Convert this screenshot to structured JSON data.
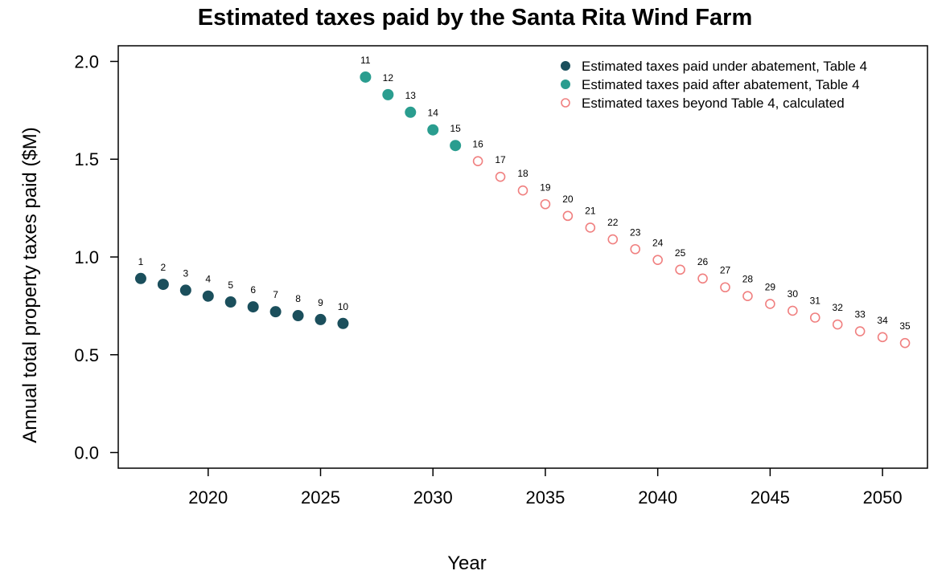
{
  "chart_data": {
    "type": "scatter",
    "title": "Estimated taxes paid by the Santa Rita Wind Farm",
    "xlabel": "Year",
    "ylabel": "Annual total property taxes paid ($M)",
    "xlim": [
      2016,
      2052
    ],
    "ylim": [
      -0.08,
      2.08
    ],
    "xticks": [
      2020,
      2025,
      2030,
      2035,
      2040,
      2045,
      2050
    ],
    "yticks": [
      0.0,
      0.5,
      1.0,
      1.5,
      2.0
    ],
    "ytick_labels": [
      "0.0",
      "0.5",
      "1.0",
      "1.5",
      "2.0"
    ],
    "grid": false,
    "legend_position": "top-right",
    "series": [
      {
        "name": "Estimated taxes paid under abatement, Table 4",
        "marker": "filled-circle",
        "color": "#1b4f5c",
        "x": [
          2017,
          2018,
          2019,
          2020,
          2021,
          2022,
          2023,
          2024,
          2025,
          2026
        ],
        "y": [
          0.89,
          0.86,
          0.83,
          0.8,
          0.77,
          0.745,
          0.72,
          0.7,
          0.68,
          0.66
        ],
        "labels": [
          "1",
          "2",
          "3",
          "4",
          "5",
          "6",
          "7",
          "8",
          "9",
          "10"
        ]
      },
      {
        "name": "Estimated taxes paid after abatement, Table 4",
        "marker": "filled-circle",
        "color": "#2a9d8f",
        "x": [
          2027,
          2028,
          2029,
          2030,
          2031
        ],
        "y": [
          1.92,
          1.83,
          1.74,
          1.65,
          1.57
        ],
        "labels": [
          "11",
          "12",
          "13",
          "14",
          "15"
        ]
      },
      {
        "name": "Estimated taxes beyond Table 4, calculated",
        "marker": "open-circle",
        "color": "#f08080",
        "x": [
          2032,
          2033,
          2034,
          2035,
          2036,
          2037,
          2038,
          2039,
          2040,
          2041,
          2042,
          2043,
          2044,
          2045,
          2046,
          2047,
          2048,
          2049,
          2050,
          2051
        ],
        "y": [
          1.49,
          1.41,
          1.34,
          1.27,
          1.21,
          1.15,
          1.09,
          1.04,
          0.985,
          0.935,
          0.89,
          0.845,
          0.8,
          0.76,
          0.725,
          0.69,
          0.655,
          0.62,
          0.59,
          0.56
        ],
        "labels": [
          "16",
          "17",
          "18",
          "19",
          "20",
          "21",
          "22",
          "23",
          "24",
          "25",
          "26",
          "27",
          "28",
          "29",
          "30",
          "31",
          "32",
          "33",
          "34",
          "35"
        ]
      }
    ]
  }
}
